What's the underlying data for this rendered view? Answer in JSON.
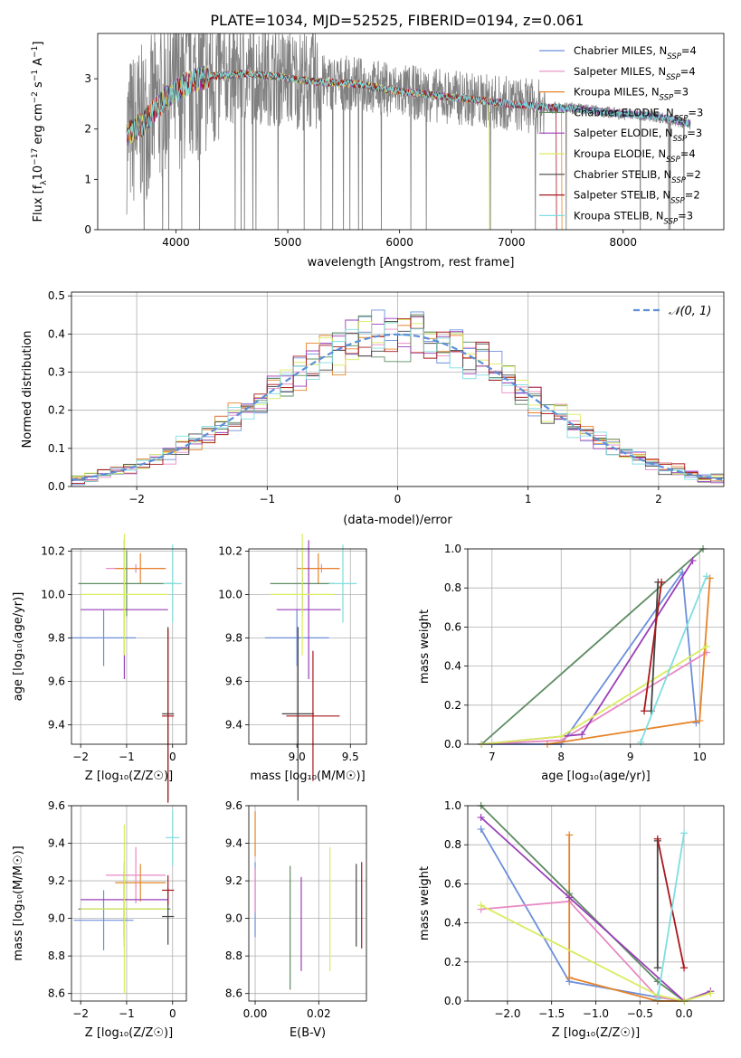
{
  "colors": {
    "grid": "#b0b0b0",
    "spectrum": "#808080",
    "gaussian": "#5b8fd8",
    "series": [
      "#6c8fdb",
      "#e78ac3",
      "#e6842a",
      "#5e8c62",
      "#9a3fb8",
      "#d9ec5e",
      "#454545",
      "#a8181c",
      "#7fdde0"
    ]
  },
  "chart_data": [
    {
      "id": "spectrum",
      "type": "line",
      "title": "PLATE=1034, MJD=52525, FIBERID=0194, z=0.061",
      "xlabel": "wavelength [Angstrom, rest frame]",
      "ylabel": "Flux [f",
      "xlim": [
        3300,
        8900
      ],
      "ylim": [
        0,
        3.9
      ],
      "xticks": [
        4000,
        5000,
        6000,
        7000,
        8000
      ],
      "yticks": [
        0,
        1,
        2,
        3
      ],
      "grid": false,
      "legend_position": "upper-right",
      "legend": [
        "Chabrier MILES, N_SSP=4",
        "Salpeter MILES, N_SSP=4",
        "Kroupa MILES, N_SSP=3",
        "Chabrier ELODIE, N_SSP=3",
        "Salpeter ELODIE, N_SSP=3",
        "Kroupa ELODIE, N_SSP=4",
        "Chabrier STELIB, N_SSP=2",
        "Salpeter STELIB, N_SSP=2",
        "Kroupa STELIB, N_SSP=3"
      ],
      "data_range": [
        3560,
        8600
      ],
      "continuum": {
        "x": [
          3560,
          3700,
          3900,
          4100,
          4300,
          4600,
          4900,
          5200,
          5600,
          6000,
          6400,
          6800,
          7200,
          7600,
          8000,
          8300,
          8600
        ],
        "y": [
          1.9,
          2.1,
          2.6,
          2.9,
          3.05,
          3.1,
          3.05,
          2.95,
          2.9,
          2.75,
          2.65,
          2.55,
          2.45,
          2.4,
          2.3,
          2.25,
          2.1
        ]
      },
      "model_cutoffs": [
        null,
        null,
        7450,
        null,
        null,
        6800,
        null,
        7400,
        null
      ]
    },
    {
      "id": "residuals",
      "type": "histogram",
      "xlabel": "(data-model)/error",
      "ylabel": "Normed distribution",
      "xlim": [
        -2.5,
        2.5
      ],
      "ylim": [
        0,
        0.51
      ],
      "xticks": [
        -2,
        -1,
        0,
        1,
        2
      ],
      "yticks": [
        0.0,
        0.1,
        0.2,
        0.3,
        0.4,
        0.5
      ],
      "grid": true,
      "legend": [
        "𝒩(0, 1)"
      ],
      "legend_position": "upper-right",
      "bin_width": 0.1
    },
    {
      "id": "age-vs-Z",
      "type": "scatter",
      "xlabel": "Z [log₁₀(Z/Z☉)]",
      "ylabel": "age  [log₁₀(age/yr)]",
      "xlim": [
        -2.2,
        0.3
      ],
      "ylim": [
        9.31,
        10.21
      ],
      "xticks": [
        -2,
        -1,
        0
      ],
      "yticks": [
        9.4,
        9.6,
        9.8,
        10.0,
        10.2
      ],
      "grid": true,
      "points": [
        {
          "x": -1.5,
          "xerr": 0.7,
          "y": 9.8,
          "yerr": 0.13
        },
        {
          "x": -0.8,
          "xerr": 0.65,
          "y": 10.12,
          "yerr": 0.02
        },
        {
          "x": -0.7,
          "xerr": 0.55,
          "y": 10.12,
          "yerr": 0.07
        },
        {
          "x": -1.0,
          "xerr": 1.05,
          "y": 10.05,
          "yerr": 0.15
        },
        {
          "x": -1.05,
          "xerr": 0.95,
          "y": 9.93,
          "yerr": 0.32
        },
        {
          "x": -1.05,
          "xerr": 0.95,
          "y": 10.0,
          "yerr": 0.28
        },
        {
          "x": -0.1,
          "xerr": 0.13,
          "y": 9.45,
          "yerr": 0.4
        },
        {
          "x": -0.1,
          "xerr": 0.13,
          "y": 9.44,
          "yerr": 0.4
        },
        {
          "x": 0.0,
          "xerr": 0.2,
          "y": 10.05,
          "yerr": 0.18
        }
      ]
    },
    {
      "id": "age-vs-mass",
      "type": "scatter",
      "xlabel": "mass [log₁₀(M/M☉)]",
      "ylabel": "",
      "xlim": [
        8.55,
        9.65
      ],
      "ylim": [
        9.31,
        10.21
      ],
      "xticks": [
        9.0,
        9.5
      ],
      "yticks": [
        9.4,
        9.6,
        9.8,
        10.0,
        10.2
      ],
      "grid": true,
      "points": [
        {
          "x": 9.0,
          "xerr": 0.3,
          "y": 9.8,
          "yerr": 0.13
        },
        {
          "x": 9.23,
          "xerr": 0.17,
          "y": 10.12,
          "yerr": 0.02
        },
        {
          "x": 9.2,
          "xerr": 0.2,
          "y": 10.12,
          "yerr": 0.07
        },
        {
          "x": 9.05,
          "xerr": 0.3,
          "y": 10.05,
          "yerr": 0.15
        },
        {
          "x": 9.11,
          "xerr": 0.3,
          "y": 9.93,
          "yerr": 0.32
        },
        {
          "x": 9.05,
          "xerr": 0.3,
          "y": 10.0,
          "yerr": 0.28
        },
        {
          "x": 9.01,
          "xerr": 0.15,
          "y": 9.45,
          "yerr": 0.4
        },
        {
          "x": 9.15,
          "xerr": 0.25,
          "y": 9.44,
          "yerr": 0.3
        },
        {
          "x": 9.43,
          "xerr": 0.13,
          "y": 10.05,
          "yerr": 0.18
        }
      ]
    },
    {
      "id": "weight-vs-age",
      "type": "line",
      "xlabel": "age  [log₁₀(age/yr)]",
      "ylabel": "mass weight",
      "xlim": [
        6.65,
        10.35
      ],
      "ylim": [
        0,
        1
      ],
      "xticks": [
        7,
        8,
        9,
        10
      ],
      "yticks": [
        0.0,
        0.2,
        0.4,
        0.6,
        0.8,
        1.0
      ],
      "grid": true,
      "series": [
        {
          "x": [
            6.85,
            8.0,
            9.75,
            9.95
          ],
          "y": [
            0.0,
            0.0,
            0.88,
            0.11
          ]
        },
        {
          "x": [
            6.85,
            8.0,
            10.1
          ],
          "y": [
            0.0,
            0.02,
            0.47
          ]
        },
        {
          "x": [
            7.8,
            10.0,
            10.15
          ],
          "y": [
            0.0,
            0.12,
            0.85
          ]
        },
        {
          "x": [
            6.85,
            10.05
          ],
          "y": [
            0.0,
            1.0
          ]
        },
        {
          "x": [
            6.85,
            8.3,
            9.9
          ],
          "y": [
            0.0,
            0.05,
            0.94
          ]
        },
        {
          "x": [
            6.85,
            8.0,
            10.1
          ],
          "y": [
            0.0,
            0.04,
            0.5
          ]
        },
        {
          "x": [
            9.3,
            9.4
          ],
          "y": [
            0.17,
            0.83
          ]
        },
        {
          "x": [
            9.2,
            9.45
          ],
          "y": [
            0.17,
            0.83
          ]
        },
        {
          "x": [
            9.15,
            10.1
          ],
          "y": [
            0.01,
            0.86
          ]
        }
      ]
    },
    {
      "id": "mass-vs-Z",
      "type": "scatter",
      "xlabel": "Z [log₁₀(Z/Z☉)]",
      "ylabel": "mass [log₁₀(M/M☉)]",
      "xlim": [
        -2.2,
        0.3
      ],
      "ylim": [
        8.56,
        9.6
      ],
      "xticks": [
        -2,
        -1,
        0
      ],
      "yticks": [
        8.6,
        8.8,
        9.0,
        9.2,
        9.4,
        9.6
      ],
      "grid": true,
      "points": [
        {
          "x": -1.5,
          "xerr": 0.65,
          "y": 8.99,
          "yerr": 0.16
        },
        {
          "x": -0.8,
          "xerr": 0.65,
          "y": 9.23,
          "yerr": 0.15
        },
        {
          "x": -0.7,
          "xerr": 0.55,
          "y": 9.19,
          "yerr": 0.1
        },
        {
          "x": -1.05,
          "xerr": 1.0,
          "y": 9.05,
          "yerr": 0.2
        },
        {
          "x": -1.05,
          "xerr": 0.95,
          "y": 9.1,
          "yerr": 0.2
        },
        {
          "x": -1.05,
          "xerr": 0.95,
          "y": 9.05,
          "yerr": 0.45
        },
        {
          "x": -0.1,
          "xerr": 0.13,
          "y": 9.01,
          "yerr": 0.15
        },
        {
          "x": -0.1,
          "xerr": 0.13,
          "y": 9.15,
          "yerr": 0.08
        },
        {
          "x": 0.0,
          "xerr": 0.15,
          "y": 9.43,
          "yerr": 0.15
        }
      ]
    },
    {
      "id": "mass-vs-EBV",
      "type": "scatter",
      "xlabel": "E(B-V)",
      "ylabel": "",
      "xlim": [
        -0.002,
        0.035
      ],
      "ylim": [
        8.56,
        9.6
      ],
      "xticks": [
        0.0,
        0.02
      ],
      "yticks": [
        8.6,
        8.8,
        9.0,
        9.2,
        9.4,
        9.6
      ],
      "grid": true,
      "points": [
        {
          "x": 0.0,
          "y": 9.1,
          "yerr": 0.2
        },
        {
          "x": 0.0,
          "y": 9.15,
          "yerr": 0.12
        },
        {
          "x": 0.0,
          "y": 9.45,
          "yerr": 0.12
        },
        {
          "x": 0.011,
          "y": 8.95,
          "yerr": 0.33
        },
        {
          "x": 0.0145,
          "y": 8.97,
          "yerr": 0.25
        },
        {
          "x": 0.0235,
          "y": 9.05,
          "yerr": 0.33
        },
        {
          "x": 0.0318,
          "y": 9.07,
          "yerr": 0.22
        },
        {
          "x": 0.0335,
          "y": 9.07,
          "yerr": 0.23
        }
      ]
    },
    {
      "id": "weight-vs-Z",
      "type": "line",
      "xlabel": "Z [log₁₀(Z/Z☉)]",
      "ylabel": "mass weight",
      "xlim": [
        -2.45,
        0.45
      ],
      "ylim": [
        0,
        1
      ],
      "xticks": [
        -2.0,
        -1.5,
        -1.0,
        -0.5,
        0.0
      ],
      "yticks": [
        0.0,
        0.2,
        0.4,
        0.6,
        0.8,
        1.0
      ],
      "grid": true,
      "series": [
        {
          "x": [
            -2.3,
            -1.3,
            -0.3,
            0.0
          ],
          "y": [
            0.88,
            0.1,
            0.02,
            0.0
          ]
        },
        {
          "x": [
            -2.3,
            -1.3,
            -0.3,
            0.0
          ],
          "y": [
            0.47,
            0.51,
            0.02,
            0.0
          ]
        },
        {
          "x": [
            -1.3,
            -1.3,
            -0.3,
            0.0
          ],
          "y": [
            0.85,
            0.12,
            0.0,
            0.0
          ]
        },
        {
          "x": [
            -2.3,
            -1.3,
            -0.3,
            0.0
          ],
          "y": [
            1.0,
            0.55,
            0.1,
            0.0
          ]
        },
        {
          "x": [
            -2.3,
            -1.3,
            0.0,
            0.3
          ],
          "y": [
            0.94,
            0.53,
            0.0,
            0.05
          ]
        },
        {
          "x": [
            -2.3,
            -0.3,
            0.0,
            0.3
          ],
          "y": [
            0.49,
            0.03,
            0.0,
            0.04
          ]
        },
        {
          "x": [
            -0.3,
            -0.3
          ],
          "y": [
            0.17,
            0.82
          ]
        },
        {
          "x": [
            -0.3,
            0.0
          ],
          "y": [
            0.83,
            0.17
          ]
        },
        {
          "x": [
            -0.3,
            0.0
          ],
          "y": [
            0.01,
            0.86
          ]
        }
      ]
    }
  ]
}
